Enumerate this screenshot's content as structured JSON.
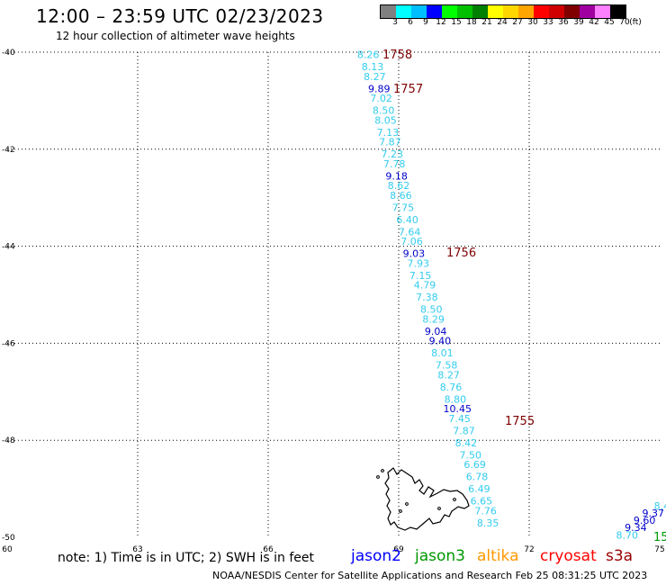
{
  "header": {
    "title": "12:00 – 23:59 UTC 02/23/2023",
    "subtitle": "12 hour collection of altimeter wave heights"
  },
  "legend": {
    "unit": "(ft)",
    "bins": [
      {
        "label": "3",
        "color": "#808080"
      },
      {
        "label": "6",
        "color": "#00ffff"
      },
      {
        "label": "9",
        "color": "#00bfff"
      },
      {
        "label": "12",
        "color": "#0000ff"
      },
      {
        "label": "15",
        "color": "#00ff00"
      },
      {
        "label": "18",
        "color": "#00c000"
      },
      {
        "label": "21",
        "color": "#008000"
      },
      {
        "label": "24",
        "color": "#ffff00"
      },
      {
        "label": "27",
        "color": "#ffd700"
      },
      {
        "label": "30",
        "color": "#ffa500"
      },
      {
        "label": "33",
        "color": "#ff0000"
      },
      {
        "label": "36",
        "color": "#d00000"
      },
      {
        "label": "39",
        "color": "#800000"
      },
      {
        "label": "42",
        "color": "#a000a0"
      },
      {
        "label": "45",
        "color": "#ff80ff"
      },
      {
        "label": "70",
        "color": "#000000"
      }
    ]
  },
  "axes": {
    "lat_labels": [
      "-40",
      "-42",
      "-44",
      "-46",
      "-48",
      "-50"
    ],
    "lon_labels": [
      "60",
      "63",
      "66",
      "69",
      "72",
      "75"
    ]
  },
  "track_times": [
    "1758",
    "1757",
    "1756",
    "1755",
    "15"
  ],
  "track_values": [
    {
      "lat": -40.05,
      "lon": 68.3,
      "v": "8.26",
      "c": "#33ccee"
    },
    {
      "lat": -40.3,
      "lon": 68.4,
      "v": "8.13",
      "c": "#33ccee"
    },
    {
      "lat": -40.5,
      "lon": 68.45,
      "v": "8.27",
      "c": "#33ccee"
    },
    {
      "lat": -40.75,
      "lon": 68.55,
      "v": "9.89",
      "c": "#0000cc"
    },
    {
      "lat": -40.95,
      "lon": 68.6,
      "v": "7.02",
      "c": "#33ccee"
    },
    {
      "lat": -41.2,
      "lon": 68.65,
      "v": "8.50",
      "c": "#33ccee"
    },
    {
      "lat": -41.4,
      "lon": 68.7,
      "v": "8.05",
      "c": "#33ccee"
    },
    {
      "lat": -41.65,
      "lon": 68.75,
      "v": "7.13",
      "c": "#33ccee"
    },
    {
      "lat": -41.85,
      "lon": 68.8,
      "v": "7.87",
      "c": "#33ccee"
    },
    {
      "lat": -42.1,
      "lon": 68.85,
      "v": "7.23",
      "c": "#33ccee"
    },
    {
      "lat": -42.3,
      "lon": 68.9,
      "v": "7.78",
      "c": "#33ccee"
    },
    {
      "lat": -42.55,
      "lon": 68.95,
      "v": "9.18",
      "c": "#0000cc"
    },
    {
      "lat": -42.75,
      "lon": 69.0,
      "v": "8.62",
      "c": "#33ccee"
    },
    {
      "lat": -42.95,
      "lon": 69.05,
      "v": "8.66",
      "c": "#33ccee"
    },
    {
      "lat": -43.2,
      "lon": 69.1,
      "v": "7.75",
      "c": "#33ccee"
    },
    {
      "lat": -43.45,
      "lon": 69.2,
      "v": "6.40",
      "c": "#33ccee"
    },
    {
      "lat": -43.7,
      "lon": 69.25,
      "v": "7.64",
      "c": "#33ccee"
    },
    {
      "lat": -43.9,
      "lon": 69.3,
      "v": "7.06",
      "c": "#33ccee"
    },
    {
      "lat": -44.15,
      "lon": 69.35,
      "v": "9.03",
      "c": "#0000cc"
    },
    {
      "lat": -44.35,
      "lon": 69.45,
      "v": "7.93",
      "c": "#33ccee"
    },
    {
      "lat": -44.6,
      "lon": 69.5,
      "v": "7.15",
      "c": "#33ccee"
    },
    {
      "lat": -44.8,
      "lon": 69.6,
      "v": "4.79",
      "c": "#33ccee"
    },
    {
      "lat": -45.05,
      "lon": 69.65,
      "v": "7.38",
      "c": "#33ccee"
    },
    {
      "lat": -45.3,
      "lon": 69.75,
      "v": "8.50",
      "c": "#33ccee"
    },
    {
      "lat": -45.5,
      "lon": 69.8,
      "v": "8.29",
      "c": "#33ccee"
    },
    {
      "lat": -45.75,
      "lon": 69.85,
      "v": "9.04",
      "c": "#0000cc"
    },
    {
      "lat": -45.95,
      "lon": 69.95,
      "v": "9.40",
      "c": "#0000cc"
    },
    {
      "lat": -46.2,
      "lon": 70.0,
      "v": "8.01",
      "c": "#33ccee"
    },
    {
      "lat": -46.45,
      "lon": 70.1,
      "v": "7.58",
      "c": "#33ccee"
    },
    {
      "lat": -46.65,
      "lon": 70.15,
      "v": "8.27",
      "c": "#33ccee"
    },
    {
      "lat": -46.9,
      "lon": 70.2,
      "v": "8.76",
      "c": "#33ccee"
    },
    {
      "lat": -47.15,
      "lon": 70.3,
      "v": "8.80",
      "c": "#33ccee"
    },
    {
      "lat": -47.35,
      "lon": 70.35,
      "v": "10.45",
      "c": "#0000cc"
    },
    {
      "lat": -47.55,
      "lon": 70.4,
      "v": "7.45",
      "c": "#33ccee"
    },
    {
      "lat": -47.8,
      "lon": 70.5,
      "v": "7.87",
      "c": "#33ccee"
    },
    {
      "lat": -48.05,
      "lon": 70.55,
      "v": "8.42",
      "c": "#33ccee"
    },
    {
      "lat": -48.3,
      "lon": 70.65,
      "v": "7.50",
      "c": "#33ccee"
    },
    {
      "lat": -48.5,
      "lon": 70.75,
      "v": "6.69",
      "c": "#33ccee"
    },
    {
      "lat": -48.75,
      "lon": 70.8,
      "v": "6.78",
      "c": "#33ccee"
    },
    {
      "lat": -49.0,
      "lon": 70.85,
      "v": "6.49",
      "c": "#33ccee"
    },
    {
      "lat": -49.25,
      "lon": 70.9,
      "v": "6.65",
      "c": "#33ccee"
    },
    {
      "lat": -49.45,
      "lon": 71.0,
      "v": "7.76",
      "c": "#33ccee"
    },
    {
      "lat": -49.7,
      "lon": 71.05,
      "v": "8.35",
      "c": "#33ccee"
    },
    {
      "lat": -49.35,
      "lon": 75.05,
      "v": "8.4",
      "c": "#33ccee"
    },
    {
      "lat": -49.5,
      "lon": 74.85,
      "v": "9.37",
      "c": "#0000cc"
    },
    {
      "lat": -49.65,
      "lon": 74.65,
      "v": "9.60",
      "c": "#0000cc"
    },
    {
      "lat": -49.8,
      "lon": 74.45,
      "v": "9.34",
      "c": "#0000cc"
    },
    {
      "lat": -49.95,
      "lon": 74.25,
      "v": "8.70",
      "c": "#33ccee"
    }
  ],
  "footer": {
    "note": "note:  1) Time is in UTC;  2) SWH is in feet",
    "satellites": [
      {
        "name": "jason2",
        "color": "#0000ff"
      },
      {
        "name": "jason3",
        "color": "#009900"
      },
      {
        "name": "altika",
        "color": "#ff9900"
      },
      {
        "name": "cryosat",
        "color": "#ff0000"
      },
      {
        "name": "s3a",
        "color": "#990000"
      }
    ],
    "credit": "NOAA/NESDIS Center for Satellite Applications and Research     Feb 25 08:31:25 UTC 2023"
  }
}
